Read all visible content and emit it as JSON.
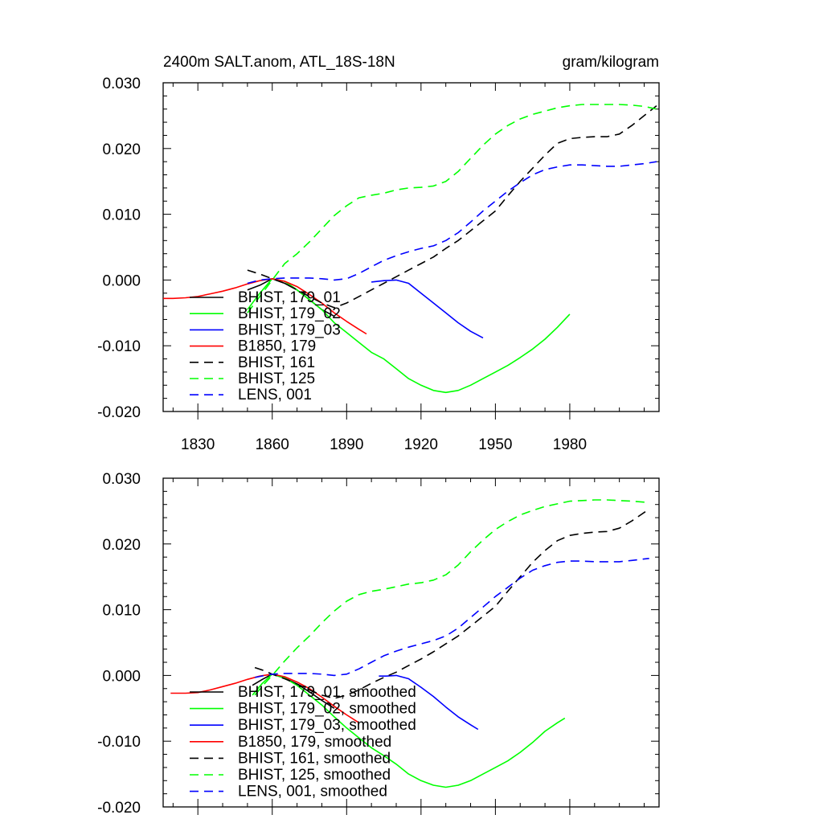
{
  "figure": {
    "title_left": "2400m SALT.anom, ATL_18S-18N",
    "title_right": "gram/kilogram"
  },
  "colors": {
    "black": "#000000",
    "green": "#00ff00",
    "blue": "#0000ff",
    "red": "#ff0000"
  },
  "chart_data": [
    {
      "type": "line",
      "panel": "top",
      "xlim": [
        1816,
        2016
      ],
      "ylim": [
        -0.02,
        0.03
      ],
      "x_ticks": [
        1830,
        1860,
        1890,
        1920,
        1950,
        1980
      ],
      "y_ticks": [
        -0.02,
        -0.01,
        0.0,
        0.01,
        0.02,
        0.03
      ],
      "y_tick_labels": [
        "-0.020",
        "-0.010",
        "0.000",
        "0.010",
        "0.020",
        "0.030"
      ],
      "x_tick_labels": [
        "1830",
        "1860",
        "1890",
        "1920",
        "1950",
        "1980"
      ],
      "legend_position": "bottom-left",
      "series": [
        {
          "name": "BHIST, 179_01",
          "color": "#000000",
          "dash": "solid",
          "x": [
            1850,
            1855,
            1860,
            1865,
            1870,
            1875,
            1880,
            1885
          ],
          "y": [
            -0.0015,
            -0.0008,
            0.0002,
            -0.0005,
            -0.0015,
            -0.003,
            -0.0045,
            -0.0055
          ]
        },
        {
          "name": "BHIST, 179_02",
          "color": "#00ff00",
          "dash": "solid",
          "x": [
            1850,
            1855,
            1860,
            1865,
            1870,
            1875,
            1880,
            1885,
            1890,
            1895,
            1900,
            1905,
            1910,
            1915,
            1920,
            1925,
            1930,
            1935,
            1940,
            1945,
            1950,
            1955,
            1960,
            1965,
            1970,
            1975,
            1980
          ],
          "y": [
            -0.0045,
            -0.002,
            0.0002,
            -0.0002,
            -0.0015,
            -0.003,
            -0.0045,
            -0.0065,
            -0.008,
            -0.0095,
            -0.011,
            -0.012,
            -0.0135,
            -0.015,
            -0.016,
            -0.0168,
            -0.0171,
            -0.0168,
            -0.016,
            -0.015,
            -0.014,
            -0.013,
            -0.0118,
            -0.0105,
            -0.009,
            -0.0072,
            -0.0052
          ]
        },
        {
          "name": "BHIST, 179_03",
          "color": "#0000ff",
          "dash": "solid",
          "x": [
            1900,
            1905,
            1910,
            1915,
            1920,
            1925,
            1930,
            1935,
            1940,
            1945
          ],
          "y": [
            -0.0003,
            -0.0001,
            0.0,
            -0.0005,
            -0.002,
            -0.0035,
            -0.005,
            -0.0065,
            -0.0078,
            -0.0088
          ]
        },
        {
          "name": "B1850, 179",
          "color": "#ff0000",
          "dash": "solid",
          "x": [
            1816,
            1820,
            1825,
            1830,
            1835,
            1840,
            1845,
            1850,
            1855,
            1860,
            1865,
            1870,
            1875,
            1880,
            1885,
            1890,
            1895,
            1898
          ],
          "y": [
            -0.0028,
            -0.0028,
            -0.0027,
            -0.0025,
            -0.0021,
            -0.0017,
            -0.0012,
            -0.0006,
            -0.0001,
            0.0002,
            -0.0002,
            -0.001,
            -0.0022,
            -0.0035,
            -0.005,
            -0.0063,
            -0.0075,
            -0.0082
          ]
        },
        {
          "name": "BHIST, 161",
          "color": "#000000",
          "dash": "dash",
          "x": [
            1850,
            1855,
            1860,
            1865,
            1870,
            1875,
            1880,
            1885,
            1890,
            1895,
            1900,
            1905,
            1910,
            1915,
            1920,
            1925,
            1930,
            1935,
            1940,
            1945,
            1950,
            1955,
            1960,
            1965,
            1970,
            1975,
            1980,
            1985,
            1990,
            1995,
            2000,
            2005,
            2010,
            2015
          ],
          "y": [
            0.0015,
            0.0009,
            0.0002,
            -0.0005,
            -0.0015,
            -0.0025,
            -0.0035,
            -0.0042,
            -0.0035,
            -0.0025,
            -0.0015,
            -0.0005,
            0.0005,
            0.0015,
            0.0025,
            0.0035,
            0.0048,
            0.006,
            0.0075,
            0.009,
            0.0105,
            0.0128,
            0.015,
            0.017,
            0.019,
            0.0208,
            0.0215,
            0.0217,
            0.0218,
            0.0218,
            0.0222,
            0.0235,
            0.025,
            0.0265
          ]
        },
        {
          "name": "BHIST, 125",
          "color": "#00ff00",
          "dash": "dash",
          "x": [
            1850,
            1855,
            1860,
            1865,
            1870,
            1875,
            1880,
            1885,
            1890,
            1895,
            1900,
            1905,
            1910,
            1915,
            1920,
            1925,
            1930,
            1935,
            1940,
            1945,
            1950,
            1955,
            1960,
            1965,
            1970,
            1975,
            1980,
            1985,
            1990,
            1995,
            2000,
            2005,
            2010,
            2015
          ],
          "y": [
            -0.005,
            -0.0025,
            0.0,
            0.0025,
            0.004,
            0.0058,
            0.0078,
            0.0098,
            0.0113,
            0.0125,
            0.0129,
            0.0132,
            0.0137,
            0.014,
            0.0141,
            0.0143,
            0.015,
            0.0165,
            0.0185,
            0.0205,
            0.0222,
            0.0235,
            0.0245,
            0.0252,
            0.0257,
            0.0262,
            0.0265,
            0.0267,
            0.0267,
            0.0267,
            0.0267,
            0.0266,
            0.0264,
            0.026
          ]
        },
        {
          "name": "LENS, 001",
          "color": "#0000ff",
          "dash": "dash",
          "x": [
            1850,
            1855,
            1860,
            1865,
            1870,
            1875,
            1880,
            1885,
            1890,
            1895,
            1900,
            1905,
            1910,
            1915,
            1920,
            1925,
            1930,
            1935,
            1940,
            1945,
            1950,
            1955,
            1960,
            1965,
            1970,
            1975,
            1980,
            1985,
            1990,
            1995,
            2000,
            2005,
            2010,
            2015
          ],
          "y": [
            -0.0005,
            0.0,
            0.0002,
            0.0003,
            0.0003,
            0.0003,
            0.0002,
            0.0,
            0.0002,
            0.001,
            0.002,
            0.003,
            0.0037,
            0.0043,
            0.0048,
            0.0052,
            0.006,
            0.0072,
            0.0088,
            0.0105,
            0.012,
            0.0135,
            0.0148,
            0.016,
            0.0168,
            0.0172,
            0.0175,
            0.0175,
            0.0174,
            0.0173,
            0.0173,
            0.0175,
            0.0177,
            0.018
          ]
        }
      ]
    },
    {
      "type": "line",
      "panel": "bottom",
      "xlim": [
        1816,
        2016
      ],
      "ylim": [
        -0.02,
        0.03
      ],
      "x_ticks": [
        1830,
        1860,
        1890,
        1920,
        1950,
        1980
      ],
      "y_ticks": [
        -0.02,
        -0.01,
        0.0,
        0.01,
        0.02,
        0.03
      ],
      "y_tick_labels": [
        "-0.020",
        "-0.010",
        "0.000",
        "0.010",
        "0.020",
        "0.030"
      ],
      "legend_position": "bottom-left",
      "series": [
        {
          "name": "BHIST, 179_01, smoothed",
          "color": "#000000",
          "dash": "solid",
          "x": [
            1852,
            1856,
            1860,
            1865,
            1870,
            1875,
            1880,
            1885
          ],
          "y": [
            -0.0015,
            -0.0006,
            0.0002,
            -0.0004,
            -0.0013,
            -0.0025,
            -0.0038,
            -0.005
          ]
        },
        {
          "name": "BHIST, 179_02, smoothed",
          "color": "#00ff00",
          "dash": "solid",
          "x": [
            1852,
            1856,
            1860,
            1865,
            1870,
            1875,
            1880,
            1885,
            1890,
            1895,
            1900,
            1905,
            1910,
            1915,
            1920,
            1925,
            1930,
            1935,
            1940,
            1945,
            1950,
            1955,
            1960,
            1965,
            1970,
            1975,
            1978
          ],
          "y": [
            -0.003,
            -0.0012,
            0.0002,
            -0.0004,
            -0.0015,
            -0.003,
            -0.0045,
            -0.0063,
            -0.008,
            -0.0095,
            -0.011,
            -0.0122,
            -0.0135,
            -0.015,
            -0.016,
            -0.0167,
            -0.017,
            -0.0167,
            -0.016,
            -0.015,
            -0.014,
            -0.013,
            -0.0117,
            -0.0102,
            -0.0085,
            -0.0072,
            -0.0065
          ]
        },
        {
          "name": "BHIST, 179_03, smoothed",
          "color": "#0000ff",
          "dash": "solid",
          "x": [
            1903,
            1906,
            1910,
            1915,
            1920,
            1925,
            1930,
            1935,
            1940,
            1943
          ],
          "y": [
            -0.0001,
            -0.0001,
            0.0,
            -0.0005,
            -0.0018,
            -0.0032,
            -0.0048,
            -0.0063,
            -0.0075,
            -0.0082
          ]
        },
        {
          "name": "B1850, 179, smoothed",
          "color": "#ff0000",
          "dash": "solid",
          "x": [
            1819,
            1825,
            1830,
            1835,
            1840,
            1845,
            1850,
            1855,
            1860,
            1865,
            1870,
            1875,
            1880,
            1885,
            1890,
            1895
          ],
          "y": [
            -0.0027,
            -0.0027,
            -0.0026,
            -0.0022,
            -0.0017,
            -0.0012,
            -0.0006,
            -0.0001,
            0.0002,
            -0.0002,
            -0.001,
            -0.002,
            -0.0033,
            -0.0047,
            -0.006,
            -0.0072
          ]
        },
        {
          "name": "BHIST, 161, smoothed",
          "color": "#000000",
          "dash": "dash",
          "x": [
            1853,
            1857,
            1860,
            1865,
            1870,
            1875,
            1880,
            1885,
            1890,
            1895,
            1900,
            1905,
            1910,
            1915,
            1920,
            1925,
            1930,
            1935,
            1940,
            1945,
            1950,
            1955,
            1960,
            1965,
            1970,
            1975,
            1980,
            1985,
            1990,
            1995,
            2000,
            2005,
            2012
          ],
          "y": [
            0.0012,
            0.0007,
            0.0002,
            -0.0005,
            -0.0013,
            -0.0022,
            -0.003,
            -0.0035,
            -0.003,
            -0.0022,
            -0.0012,
            -0.0003,
            0.0005,
            0.0015,
            0.0025,
            0.0036,
            0.0048,
            0.006,
            0.0075,
            0.009,
            0.0105,
            0.0128,
            0.015,
            0.0172,
            0.019,
            0.0205,
            0.0213,
            0.0216,
            0.0218,
            0.0219,
            0.0224,
            0.0235,
            0.0253
          ]
        },
        {
          "name": "BHIST, 125, smoothed",
          "color": "#00ff00",
          "dash": "dash",
          "x": [
            1853,
            1857,
            1860,
            1865,
            1870,
            1875,
            1880,
            1885,
            1890,
            1895,
            1900,
            1905,
            1910,
            1915,
            1920,
            1925,
            1930,
            1935,
            1940,
            1945,
            1950,
            1955,
            1960,
            1965,
            1970,
            1975,
            1980,
            1985,
            1990,
            1995,
            2000,
            2005,
            2012
          ],
          "y": [
            -0.003,
            -0.0012,
            0.0,
            0.0022,
            0.0042,
            0.006,
            0.008,
            0.0098,
            0.0113,
            0.0123,
            0.0128,
            0.0131,
            0.0135,
            0.0139,
            0.0141,
            0.0145,
            0.0153,
            0.0168,
            0.0188,
            0.0206,
            0.0222,
            0.0234,
            0.0244,
            0.0251,
            0.0257,
            0.0261,
            0.0265,
            0.0266,
            0.0267,
            0.0267,
            0.0266,
            0.0265,
            0.0263
          ]
        },
        {
          "name": "LENS, 001, smoothed",
          "color": "#0000ff",
          "dash": "dash",
          "x": [
            1853,
            1857,
            1860,
            1865,
            1870,
            1875,
            1880,
            1885,
            1890,
            1895,
            1900,
            1905,
            1910,
            1915,
            1920,
            1925,
            1930,
            1935,
            1940,
            1945,
            1950,
            1955,
            1960,
            1965,
            1970,
            1975,
            1980,
            1985,
            1990,
            1995,
            2000,
            2005,
            2012
          ],
          "y": [
            -0.0003,
            0.0,
            0.0002,
            0.0003,
            0.0003,
            0.0003,
            0.0002,
            0.0,
            0.0002,
            0.001,
            0.002,
            0.003,
            0.0037,
            0.0043,
            0.0048,
            0.0053,
            0.006,
            0.0072,
            0.0088,
            0.0104,
            0.012,
            0.0134,
            0.0148,
            0.016,
            0.0167,
            0.0172,
            0.0174,
            0.0174,
            0.0173,
            0.0173,
            0.0173,
            0.0175,
            0.0178
          ]
        }
      ]
    }
  ]
}
